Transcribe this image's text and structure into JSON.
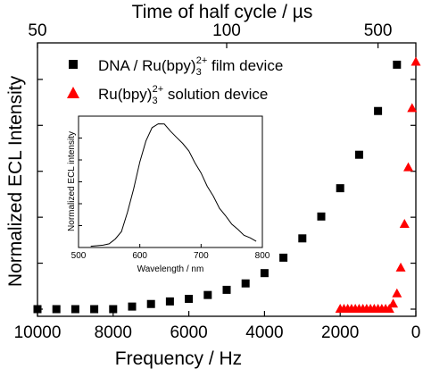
{
  "chart_data": [
    {
      "type": "scatter",
      "xlabel": "Frequency / Hz",
      "ylabel": "Normalized ECL Intensity",
      "x2label": "Time of half cycle / µs",
      "xlim": [
        10000,
        0
      ],
      "ylim": [
        0,
        1.0
      ],
      "x_ticks": [
        "10000",
        "8000",
        "6000",
        "4000",
        "2000",
        "0"
      ],
      "x2_ticks": [
        "50",
        "100",
        "500"
      ],
      "x2_tick_values_us": [
        50,
        100,
        500
      ],
      "x2_scale": "reciprocal",
      "y_tick_labels_shown": false,
      "grid": false,
      "legend_position": "top-right",
      "series": [
        {
          "name": "DNA / Ru(bpy)3 2+ film device",
          "name_main": "DNA / Ru(bpy)",
          "name_sub": "3",
          "name_sup": "2+",
          "name_tail": " film device",
          "marker": "square",
          "color": "#000000",
          "x": [
            10000,
            9500,
            9000,
            8500,
            8000,
            7500,
            7000,
            6500,
            6000,
            5500,
            5000,
            4500,
            4000,
            3500,
            3000,
            2500,
            2000,
            1500,
            1000,
            500
          ],
          "y": [
            0.0,
            0.0,
            0.0,
            0.0,
            0.0,
            0.01,
            0.02,
            0.03,
            0.04,
            0.055,
            0.075,
            0.1,
            0.14,
            0.2,
            0.275,
            0.36,
            0.47,
            0.6,
            0.77,
            0.95
          ]
        },
        {
          "name": "Ru(bpy)3 2+ solution device",
          "name_main": "Ru(bpy)",
          "name_sub": "3",
          "name_sup": "2+",
          "name_tail": " solution device",
          "marker": "triangle",
          "color": "#ff0000",
          "x": [
            2000,
            1900,
            1800,
            1700,
            1600,
            1500,
            1400,
            1300,
            1200,
            1100,
            1000,
            900,
            800,
            700,
            600,
            500,
            400,
            300,
            200,
            100,
            0
          ],
          "y": [
            0.0,
            0.0,
            0.0,
            0.0,
            0.0,
            0.0,
            0.0,
            0.0,
            0.0,
            0.0,
            0.0,
            0.0,
            0.0,
            0.0,
            0.02,
            0.06,
            0.16,
            0.33,
            0.55,
            0.78,
            0.96
          ]
        }
      ]
    },
    {
      "type": "line",
      "inset": true,
      "xlabel": "Wavelength / nm",
      "ylabel": "Normalized ECL intensity",
      "xlim": [
        500,
        800
      ],
      "ylim": [
        0,
        1.0
      ],
      "x_ticks": [
        "500",
        "600",
        "700",
        "800"
      ],
      "y_tick_labels_shown": false,
      "series": [
        {
          "color": "#000000",
          "x": [
            520,
            540,
            550,
            560,
            570,
            580,
            590,
            600,
            610,
            620,
            630,
            640,
            650,
            660,
            670,
            680,
            690,
            700,
            710,
            720,
            730,
            740,
            750,
            760,
            770,
            780,
            790
          ],
          "y": [
            0.0,
            0.0,
            0.02,
            0.05,
            0.12,
            0.27,
            0.47,
            0.68,
            0.86,
            0.96,
            1.0,
            0.99,
            0.94,
            0.88,
            0.84,
            0.77,
            0.68,
            0.59,
            0.49,
            0.4,
            0.31,
            0.24,
            0.18,
            0.13,
            0.09,
            0.06,
            0.04
          ]
        }
      ]
    }
  ]
}
